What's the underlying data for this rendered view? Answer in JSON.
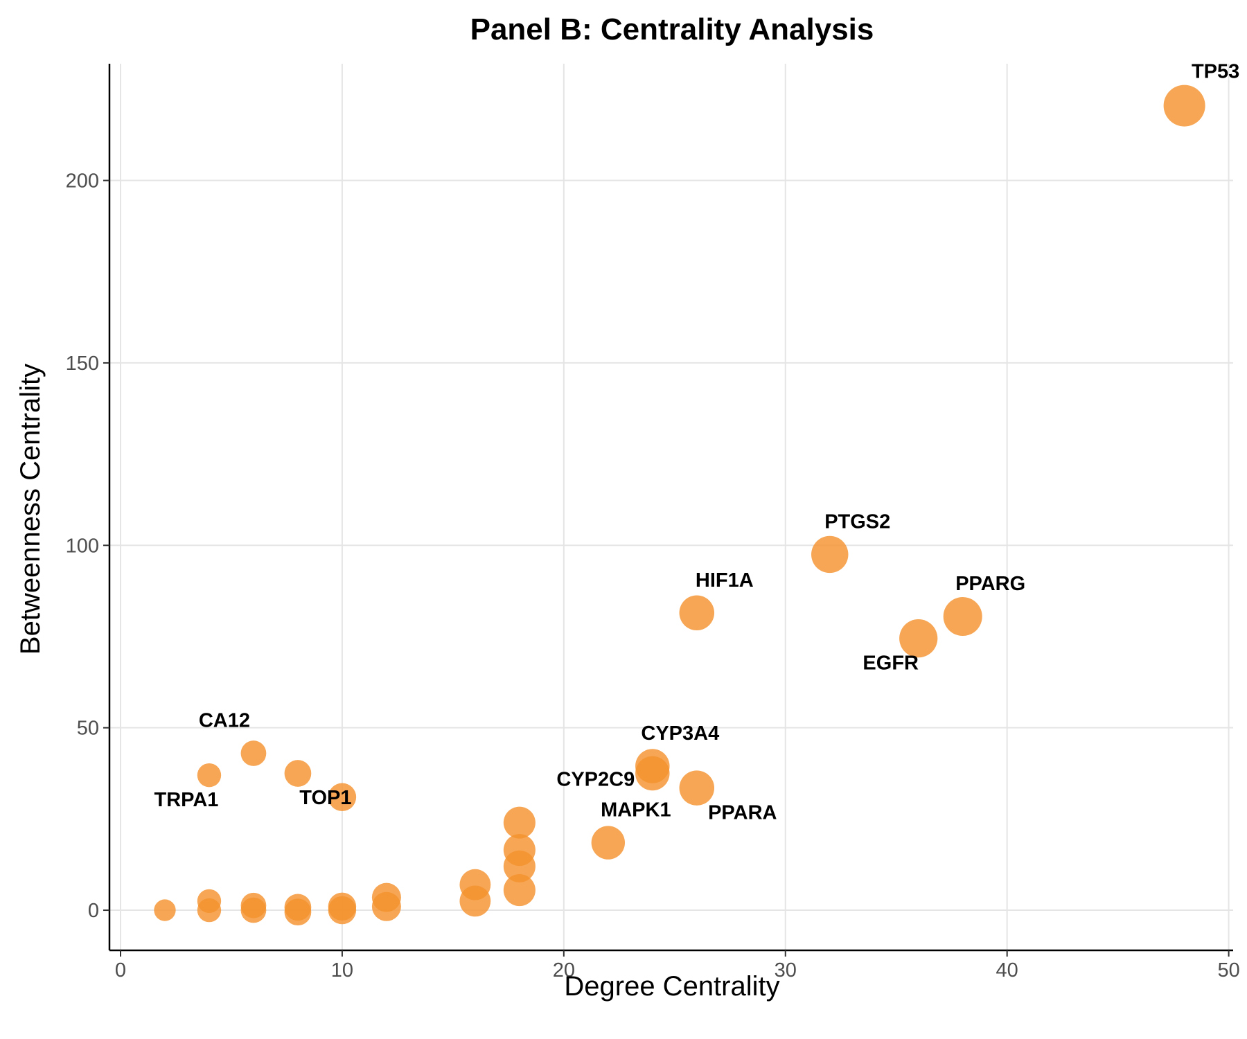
{
  "chart_data": {
    "type": "scatter",
    "title": "Panel B: Centrality Analysis",
    "xlabel": "Degree Centrality",
    "ylabel": "Betweenness Centrality",
    "xlim": [
      -0.5,
      50.2
    ],
    "ylim": [
      -11,
      232
    ],
    "x_ticks": [
      0,
      10,
      20,
      30,
      40,
      50
    ],
    "y_ticks": [
      0,
      50,
      100,
      150,
      200
    ],
    "grid": true,
    "legend": "none",
    "point_color": "#f4922e",
    "points": [
      {
        "x": 48,
        "y": 220.5,
        "size": 48,
        "label": "TP53"
      },
      {
        "x": 32,
        "y": 97.5,
        "size": 32,
        "label": "PTGS2"
      },
      {
        "x": 38,
        "y": 80.5,
        "size": 38,
        "label": "PPARG"
      },
      {
        "x": 36,
        "y": 74.5,
        "size": 36,
        "label": "EGFR"
      },
      {
        "x": 26,
        "y": 81.5,
        "size": 26,
        "label": "HIF1A"
      },
      {
        "x": 24,
        "y": 39.5,
        "size": 24,
        "label": "CYP3A4"
      },
      {
        "x": 24,
        "y": 37.5,
        "size": 24,
        "label": "CYP2C9"
      },
      {
        "x": 26,
        "y": 33.5,
        "size": 26,
        "label": "PPARA"
      },
      {
        "x": 22,
        "y": 18.5,
        "size": 22,
        "label": "MAPK1"
      },
      {
        "x": 6,
        "y": 43,
        "size": 6,
        "label": "CA12"
      },
      {
        "x": 4,
        "y": 37,
        "size": 4,
        "label": "TRPA1"
      },
      {
        "x": 10,
        "y": 31,
        "size": 10,
        "label": "TOP1"
      },
      {
        "x": 8,
        "y": 37.5,
        "size": 8,
        "label": ""
      },
      {
        "x": 18,
        "y": 24,
        "size": 18,
        "label": ""
      },
      {
        "x": 18,
        "y": 16.5,
        "size": 18,
        "label": ""
      },
      {
        "x": 18,
        "y": 12,
        "size": 18,
        "label": ""
      },
      {
        "x": 18,
        "y": 5.5,
        "size": 18,
        "label": ""
      },
      {
        "x": 16,
        "y": 7,
        "size": 16,
        "label": ""
      },
      {
        "x": 16,
        "y": 2.5,
        "size": 16,
        "label": ""
      },
      {
        "x": 12,
        "y": 3.5,
        "size": 12,
        "label": ""
      },
      {
        "x": 12,
        "y": 1,
        "size": 12,
        "label": ""
      },
      {
        "x": 10,
        "y": 1,
        "size": 10,
        "label": ""
      },
      {
        "x": 10,
        "y": 0,
        "size": 10,
        "label": ""
      },
      {
        "x": 8,
        "y": 0.8,
        "size": 8,
        "label": ""
      },
      {
        "x": 8,
        "y": -0.5,
        "size": 8,
        "label": ""
      },
      {
        "x": 6,
        "y": 1.3,
        "size": 6,
        "label": ""
      },
      {
        "x": 6,
        "y": 0,
        "size": 6,
        "label": ""
      },
      {
        "x": 4,
        "y": 2.5,
        "size": 4,
        "label": ""
      },
      {
        "x": 4,
        "y": 0,
        "size": 4,
        "label": ""
      },
      {
        "x": 2,
        "y": 0,
        "size": 2,
        "label": ""
      }
    ]
  }
}
